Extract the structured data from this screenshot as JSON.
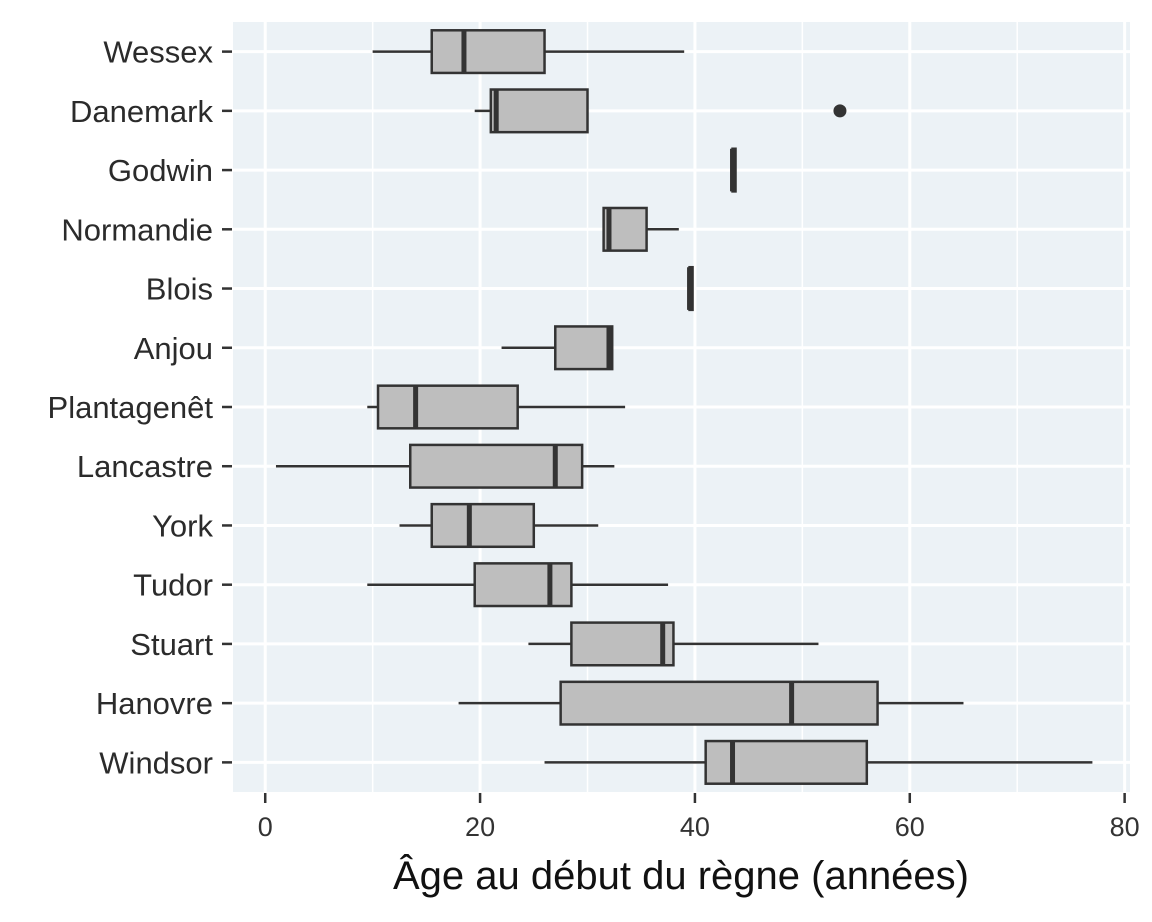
{
  "chart_data": {
    "type": "boxplot",
    "orientation": "horizontal",
    "title": "",
    "xlabel": "Âge au début du règne (années)",
    "ylabel": "",
    "xlim": [
      -3,
      80.5
    ],
    "xticks": [
      0,
      20,
      40,
      60,
      80
    ],
    "grid": true,
    "legend": "none",
    "colors": {
      "panel": "#ecf2f6",
      "box": "#bebebe",
      "line": "#333333",
      "grid": "#ffffff"
    },
    "categories": [
      "Wessex",
      "Danemark",
      "Godwin",
      "Normandie",
      "Blois",
      "Anjou",
      "Plantagenêt",
      "Lancastre",
      "York",
      "Tudor",
      "Stuart",
      "Hanovre",
      "Windsor"
    ],
    "series": [
      {
        "category": "Wessex",
        "min": 10,
        "q1": 15.5,
        "median": 18.5,
        "q3": 26,
        "max": 39,
        "outliers": []
      },
      {
        "category": "Danemark",
        "min": 19.5,
        "q1": 21,
        "median": 21.5,
        "q3": 30,
        "max": 30,
        "outliers": [
          53.5
        ]
      },
      {
        "category": "Godwin",
        "min": 43.5,
        "q1": 43.5,
        "median": 43.5,
        "q3": 43.5,
        "max": 43.5,
        "outliers": []
      },
      {
        "category": "Normandie",
        "min": 31.5,
        "q1": 31.5,
        "median": 32,
        "q3": 35.5,
        "max": 38.5,
        "outliers": []
      },
      {
        "category": "Blois",
        "min": 39.5,
        "q1": 39.5,
        "median": 39.5,
        "q3": 39.5,
        "max": 39.5,
        "outliers": []
      },
      {
        "category": "Anjou",
        "min": 22,
        "q1": 27,
        "median": 32,
        "q3": 32.3,
        "max": 32.3,
        "outliers": []
      },
      {
        "category": "Plantagenêt",
        "min": 9.5,
        "q1": 10.5,
        "median": 14,
        "q3": 23.5,
        "max": 33.5,
        "outliers": []
      },
      {
        "category": "Lancastre",
        "min": 1,
        "q1": 13.5,
        "median": 27,
        "q3": 29.5,
        "max": 32.5,
        "outliers": []
      },
      {
        "category": "York",
        "min": 12.5,
        "q1": 15.5,
        "median": 19,
        "q3": 25,
        "max": 31,
        "outliers": []
      },
      {
        "category": "Tudor",
        "min": 9.5,
        "q1": 19.5,
        "median": 26.5,
        "q3": 28.5,
        "max": 37.5,
        "outliers": []
      },
      {
        "category": "Stuart",
        "min": 24.5,
        "q1": 28.5,
        "median": 37,
        "q3": 38,
        "max": 51.5,
        "outliers": []
      },
      {
        "category": "Hanovre",
        "min": 18,
        "q1": 27.5,
        "median": 49,
        "q3": 57,
        "max": 65,
        "outliers": []
      },
      {
        "category": "Windsor",
        "min": 26,
        "q1": 41,
        "median": 43.5,
        "q3": 56,
        "max": 77,
        "outliers": []
      }
    ]
  }
}
